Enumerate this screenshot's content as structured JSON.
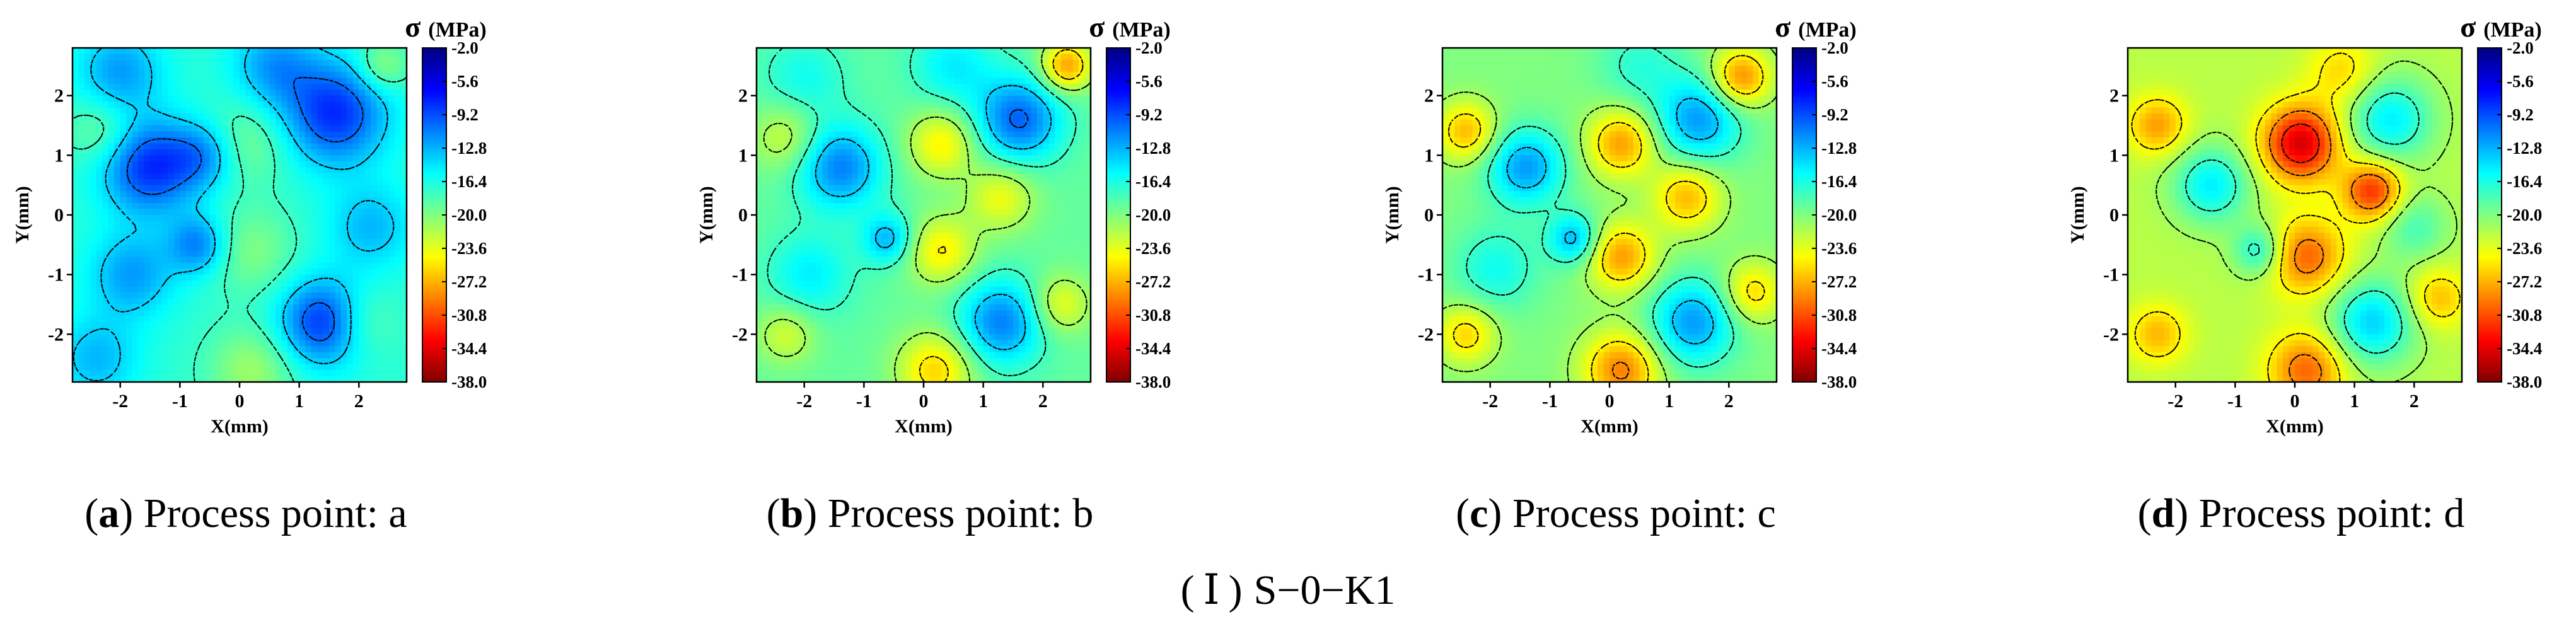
{
  "figure_caption": {
    "numeral": "Ⅰ",
    "label": "S−0−K1"
  },
  "colorbar": {
    "symbol": "σ",
    "unit": "(MPa)",
    "ticks": [
      "-2.0",
      "-5.6",
      "-9.2",
      "-12.8",
      "-16.4",
      "-20.0",
      "-23.6",
      "-27.2",
      "-30.8",
      "-34.4",
      "-38.0"
    ],
    "range": [
      -38.0,
      -2.0
    ],
    "colors": [
      "#800000",
      "#ff0000",
      "#ff8000",
      "#ffff00",
      "#80ff80",
      "#00ffff",
      "#0080ff",
      "#0000ff",
      "#000080"
    ]
  },
  "panels": [
    {
      "tag": "a",
      "caption": "Process point: a",
      "xlabel": "X(mm)",
      "ylabel": "Y(mm)"
    },
    {
      "tag": "b",
      "caption": "Process point: b",
      "xlabel": "X(mm)",
      "ylabel": "Y(mm)"
    },
    {
      "tag": "c",
      "caption": "Process point: c",
      "xlabel": "X(mm)",
      "ylabel": "Y(mm)"
    },
    {
      "tag": "d",
      "caption": "Process point: d",
      "xlabel": "X(mm)",
      "ylabel": "Y(mm)"
    }
  ],
  "chart_data": [
    {
      "type": "heatmap",
      "title": "Process point: a",
      "xlabel": "X(mm)",
      "ylabel": "Y(mm)",
      "xlim": [
        -2.8,
        2.8
      ],
      "ylim": [
        -2.8,
        2.8
      ],
      "xticks": [
        -2,
        -1,
        0,
        1,
        2
      ],
      "yticks": [
        -2,
        -1,
        0,
        1,
        2
      ],
      "zlabel": "σ (MPa)",
      "zlim": [
        -38.0,
        -2.0
      ],
      "contours": "dashed",
      "base": -17,
      "features": [
        {
          "x": -1.5,
          "y": 0.8,
          "amp": 9,
          "s": 0.55
        },
        {
          "x": -2.0,
          "y": 2.4,
          "amp": 5,
          "s": 0.5
        },
        {
          "x": 1.6,
          "y": 1.7,
          "amp": 9,
          "s": 0.6
        },
        {
          "x": 0.6,
          "y": 2.5,
          "amp": 5,
          "s": 0.5
        },
        {
          "x": 1.4,
          "y": -1.8,
          "amp": 9,
          "s": 0.5
        },
        {
          "x": -0.7,
          "y": -0.5,
          "amp": 6,
          "s": 0.35
        },
        {
          "x": -1.8,
          "y": -1.0,
          "amp": 5,
          "s": 0.5
        },
        {
          "x": -0.6,
          "y": 1.0,
          "amp": 5,
          "s": 0.4
        },
        {
          "x": 2.2,
          "y": -0.2,
          "amp": 4,
          "s": 0.5
        },
        {
          "x": -2.4,
          "y": -2.4,
          "amp": 4,
          "s": 0.5
        },
        {
          "x": 0.2,
          "y": -2.6,
          "amp": -4,
          "s": 0.5
        },
        {
          "x": 0.2,
          "y": -0.6,
          "amp": -3,
          "s": 0.5
        },
        {
          "x": 2.4,
          "y": 2.5,
          "amp": -4,
          "s": 0.3
        },
        {
          "x": -2.3,
          "y": 1.4,
          "amp": -3,
          "s": 0.4
        },
        {
          "x": 0.1,
          "y": 1.2,
          "amp": -3,
          "s": 0.5
        },
        {
          "x": 2.0,
          "y": -1.8,
          "amp": -3,
          "s": 0.4
        }
      ]
    },
    {
      "type": "heatmap",
      "title": "Process point: b",
      "xlabel": "X(mm)",
      "ylabel": "Y(mm)",
      "xlim": [
        -2.8,
        2.8
      ],
      "ylim": [
        -2.8,
        2.8
      ],
      "xticks": [
        -2,
        -1,
        0,
        1,
        2
      ],
      "yticks": [
        -2,
        -1,
        0,
        1,
        2
      ],
      "zlabel": "σ (MPa)",
      "zlim": [
        -38.0,
        -2.0
      ],
      "contours": "dashed",
      "base": -19,
      "features": [
        {
          "x": -1.4,
          "y": 0.8,
          "amp": 8,
          "s": 0.5
        },
        {
          "x": 1.6,
          "y": 1.6,
          "amp": 9,
          "s": 0.5
        },
        {
          "x": 1.3,
          "y": -1.8,
          "amp": 8,
          "s": 0.5
        },
        {
          "x": -0.6,
          "y": -0.4,
          "amp": 6,
          "s": 0.3
        },
        {
          "x": -1.9,
          "y": -1.0,
          "amp": 4,
          "s": 0.5
        },
        {
          "x": 0.5,
          "y": 2.5,
          "amp": 4,
          "s": 0.5
        },
        {
          "x": -2.0,
          "y": 2.3,
          "amp": 3,
          "s": 0.5
        },
        {
          "x": 2.4,
          "y": 2.5,
          "amp": -9,
          "s": 0.3
        },
        {
          "x": 0.3,
          "y": 1.2,
          "amp": -6,
          "s": 0.4
        },
        {
          "x": 0.3,
          "y": -0.6,
          "amp": -6,
          "s": 0.4
        },
        {
          "x": 1.3,
          "y": 0.3,
          "amp": -5,
          "s": 0.4
        },
        {
          "x": 0.2,
          "y": -2.6,
          "amp": -7,
          "s": 0.45
        },
        {
          "x": -2.3,
          "y": 1.3,
          "amp": -4,
          "s": 0.4
        },
        {
          "x": -2.3,
          "y": -2.0,
          "amp": -4,
          "s": 0.35
        },
        {
          "x": 2.3,
          "y": -1.5,
          "amp": -5,
          "s": 0.35
        }
      ]
    },
    {
      "type": "heatmap",
      "title": "Process point: c",
      "xlabel": "X(mm)",
      "ylabel": "Y(mm)",
      "xlim": [
        -2.8,
        2.8
      ],
      "ylim": [
        -2.8,
        2.8
      ],
      "xticks": [
        -2,
        -1,
        0,
        1,
        2
      ],
      "yticks": [
        -2,
        -1,
        0,
        1,
        2
      ],
      "zlabel": "σ (MPa)",
      "zlim": [
        -38.0,
        -2.0
      ],
      "contours": "dashed",
      "base": -20,
      "features": [
        {
          "x": -1.4,
          "y": 0.8,
          "amp": 8,
          "s": 0.45
        },
        {
          "x": 1.5,
          "y": 1.6,
          "amp": 8,
          "s": 0.5
        },
        {
          "x": 1.4,
          "y": -1.8,
          "amp": 8,
          "s": 0.5
        },
        {
          "x": -0.6,
          "y": -0.4,
          "amp": 7,
          "s": 0.3
        },
        {
          "x": -1.9,
          "y": -0.9,
          "amp": 4,
          "s": 0.5
        },
        {
          "x": 0.5,
          "y": 2.5,
          "amp": 3,
          "s": 0.5
        },
        {
          "x": 2.2,
          "y": 2.3,
          "amp": -9,
          "s": 0.35
        },
        {
          "x": 0.2,
          "y": 1.2,
          "amp": -8,
          "s": 0.4
        },
        {
          "x": 0.2,
          "y": -0.7,
          "amp": -8,
          "s": 0.4
        },
        {
          "x": 1.3,
          "y": 0.3,
          "amp": -7,
          "s": 0.4
        },
        {
          "x": 0.2,
          "y": -2.6,
          "amp": -9,
          "s": 0.45
        },
        {
          "x": -2.4,
          "y": 1.4,
          "amp": -7,
          "s": 0.35
        },
        {
          "x": -2.4,
          "y": -2.0,
          "amp": -6,
          "s": 0.35
        },
        {
          "x": 2.4,
          "y": -1.3,
          "amp": -6,
          "s": 0.35
        }
      ]
    },
    {
      "type": "heatmap",
      "title": "Process point: d",
      "xlabel": "X(mm)",
      "ylabel": "Y(mm)",
      "xlim": [
        -2.8,
        2.8
      ],
      "ylim": [
        -2.8,
        2.8
      ],
      "xticks": [
        -2,
        -1,
        0,
        1,
        2
      ],
      "yticks": [
        -2,
        -1,
        0,
        1,
        2
      ],
      "zlabel": "σ (MPa)",
      "zlim": [
        -38.0,
        -2.0
      ],
      "contours": "dashed",
      "base": -22,
      "features": [
        {
          "x": -1.4,
          "y": 0.5,
          "amp": 7,
          "s": 0.45
        },
        {
          "x": 1.6,
          "y": 1.6,
          "amp": 7,
          "s": 0.5
        },
        {
          "x": 1.3,
          "y": -1.8,
          "amp": 8,
          "s": 0.5
        },
        {
          "x": -0.6,
          "y": -0.6,
          "amp": 6,
          "s": 0.3
        },
        {
          "x": 2.0,
          "y": -0.2,
          "amp": 4,
          "s": 0.4
        },
        {
          "x": 0.1,
          "y": 1.2,
          "amp": -13,
          "s": 0.45
        },
        {
          "x": 1.3,
          "y": 0.4,
          "amp": -10,
          "s": 0.35
        },
        {
          "x": 0.2,
          "y": -0.7,
          "amp": -8,
          "s": 0.45
        },
        {
          "x": 0.2,
          "y": -2.6,
          "amp": -8,
          "s": 0.45
        },
        {
          "x": -2.3,
          "y": 1.5,
          "amp": -6,
          "s": 0.35
        },
        {
          "x": -2.3,
          "y": -2.0,
          "amp": -5,
          "s": 0.35
        },
        {
          "x": 2.4,
          "y": -1.4,
          "amp": -5,
          "s": 0.35
        },
        {
          "x": 0.8,
          "y": 2.4,
          "amp": -4,
          "s": 0.4
        }
      ]
    }
  ]
}
